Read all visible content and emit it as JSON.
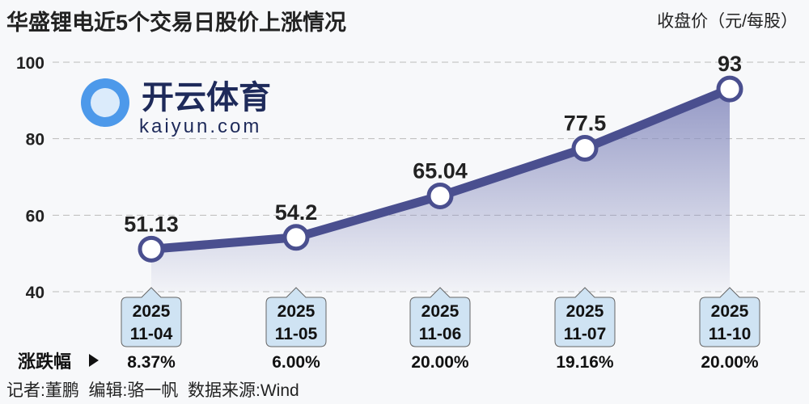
{
  "chart_data": {
    "type": "line",
    "title": "华盛锂电近5个交易日股价上涨情况",
    "ylabel": "收盘价（元/每股）",
    "ylim": [
      40,
      100
    ],
    "yticks": [
      40,
      60,
      80,
      100
    ],
    "grid": true,
    "categories": [
      [
        "2025",
        "11-04"
      ],
      [
        "2025",
        "11-05"
      ],
      [
        "2025",
        "11-06"
      ],
      [
        "2025",
        "11-07"
      ],
      [
        "2025",
        "11-10"
      ]
    ],
    "values": [
      51.13,
      54.2,
      65.04,
      77.5,
      93
    ],
    "value_labels": [
      "51.13",
      "54.2",
      "65.04",
      "77.5",
      "93"
    ],
    "change_label": "涨跌幅",
    "changes": [
      "8.37%",
      "6.00%",
      "20.00%",
      "19.16%",
      "20.00%"
    ],
    "colors": {
      "line": "#4a4f8f",
      "fill": "#8a8fc0",
      "box": "#cfe3f3"
    }
  },
  "footer": "记者:董鹏  编辑:骆一帆  数据来源:Wind",
  "watermark": {
    "cn": "开云体育",
    "en": "kaiyun.com"
  }
}
